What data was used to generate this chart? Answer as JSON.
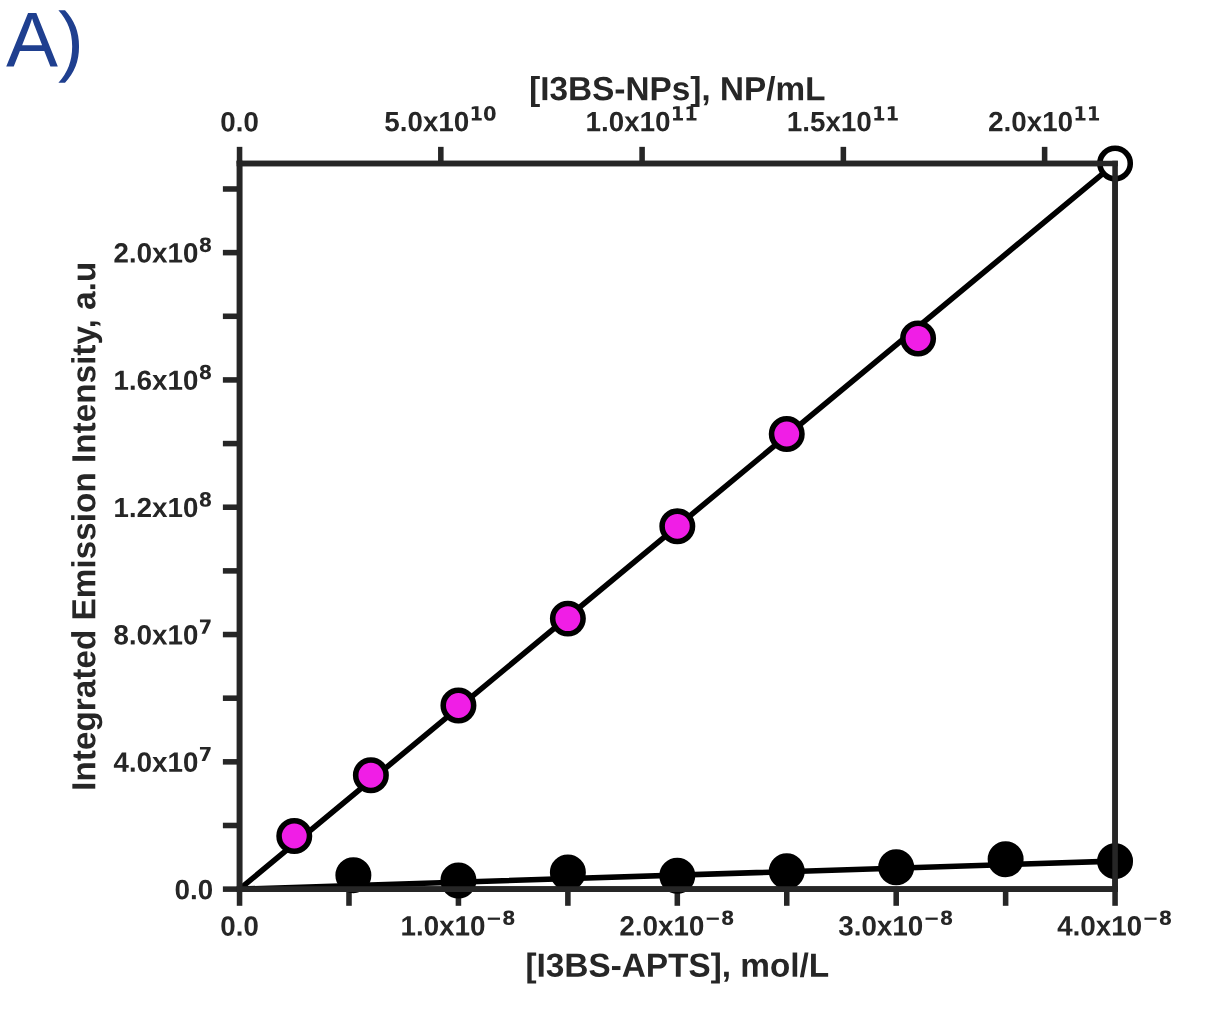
{
  "chart_data": {
    "type": "scatter",
    "xlabel": "[I3BS-APTS], mol/L",
    "ylabel": "Integrated Emission Intensity, a.u",
    "x2label": "[I3BS-NPs], NP/mL",
    "annotations": [
      "A)"
    ],
    "xlim": [
      0,
      4e-08
    ],
    "ylim": [
      0,
      228000000.0
    ],
    "x2lim": [
      0,
      217500000000.0
    ],
    "xticks": [
      {
        "value": 0,
        "label": "0.0"
      },
      {
        "value": 5e-09,
        "label": null
      },
      {
        "value": 1e-08,
        "label": "1.0x10$^{−8}$"
      },
      {
        "value": 1.5e-08,
        "label": null
      },
      {
        "value": 2e-08,
        "label": "2.0x10$^{−8}$"
      },
      {
        "value": 2.5e-08,
        "label": null
      },
      {
        "value": 3e-08,
        "label": "3.0x10$^{−8}$"
      },
      {
        "value": 3.5e-08,
        "label": null
      },
      {
        "value": 4e-08,
        "label": "4.0x10$^{−8}$"
      }
    ],
    "yticks": [
      {
        "value": 0,
        "label": "0.0"
      },
      {
        "value": 20000000.0,
        "label": null
      },
      {
        "value": 40000000.0,
        "label": "4.0x10$^{7}$"
      },
      {
        "value": 60000000.0,
        "label": null
      },
      {
        "value": 80000000.0,
        "label": "8.0x10$^{7}$"
      },
      {
        "value": 100000000.0,
        "label": null
      },
      {
        "value": 120000000.0,
        "label": "1.2x10$^{8}$"
      },
      {
        "value": 140000000.0,
        "label": null
      },
      {
        "value": 160000000.0,
        "label": "1.6x10$^{8}$"
      },
      {
        "value": 180000000.0,
        "label": null
      },
      {
        "value": 200000000.0,
        "label": "2.0x10$^{8}$"
      },
      {
        "value": 220000000.0,
        "label": null
      }
    ],
    "x2ticks": [
      {
        "value": 0,
        "label": "0.0"
      },
      {
        "value": 50000000000.0,
        "label": "5.0x10$^{10}$"
      },
      {
        "value": 100000000000.0,
        "label": "1.0x10$^{11}$"
      },
      {
        "value": 150000000000.0,
        "label": "1.5x10$^{11}$"
      },
      {
        "value": 200000000000.0,
        "label": "2.0x10$^{11}$"
      }
    ],
    "grid": false,
    "legend": false,
    "marker": "circle",
    "series": [
      {
        "type": "line",
        "color": "#000000",
        "x": [
          0,
          4e-08
        ],
        "values": [
          0,
          228000000.0
        ],
        "marker": "none"
      },
      {
        "type": "line",
        "color": "#000000",
        "x": [
          0,
          4e-08
        ],
        "values": [
          0,
          8800000.0
        ],
        "marker": "none"
      },
      {
        "color": "#f01ee6",
        "x": [
          2.5e-09,
          6e-09,
          1e-08,
          1.5e-08,
          2e-08,
          2.5e-08,
          3.1e-08
        ],
        "values": [
          16700000.0,
          35800000.0,
          57700000.0,
          85000000.0,
          114000000.0,
          143000000.0,
          173000000.0
        ]
      },
      {
        "color": "#000000",
        "x": [
          5.2e-09,
          1e-08,
          1.5e-08,
          2e-08,
          2.5e-08,
          3e-08,
          3.5e-08,
          4e-08
        ],
        "values": [
          4400000.0,
          2700000.0,
          5200000.0,
          4200000.0,
          5600000.0,
          6900000.0,
          9400000.0,
          8800000.0
        ]
      },
      {
        "color": "#ffffff",
        "x": [
          4e-08
        ],
        "values": [
          228000000.0
        ]
      }
    ]
  }
}
